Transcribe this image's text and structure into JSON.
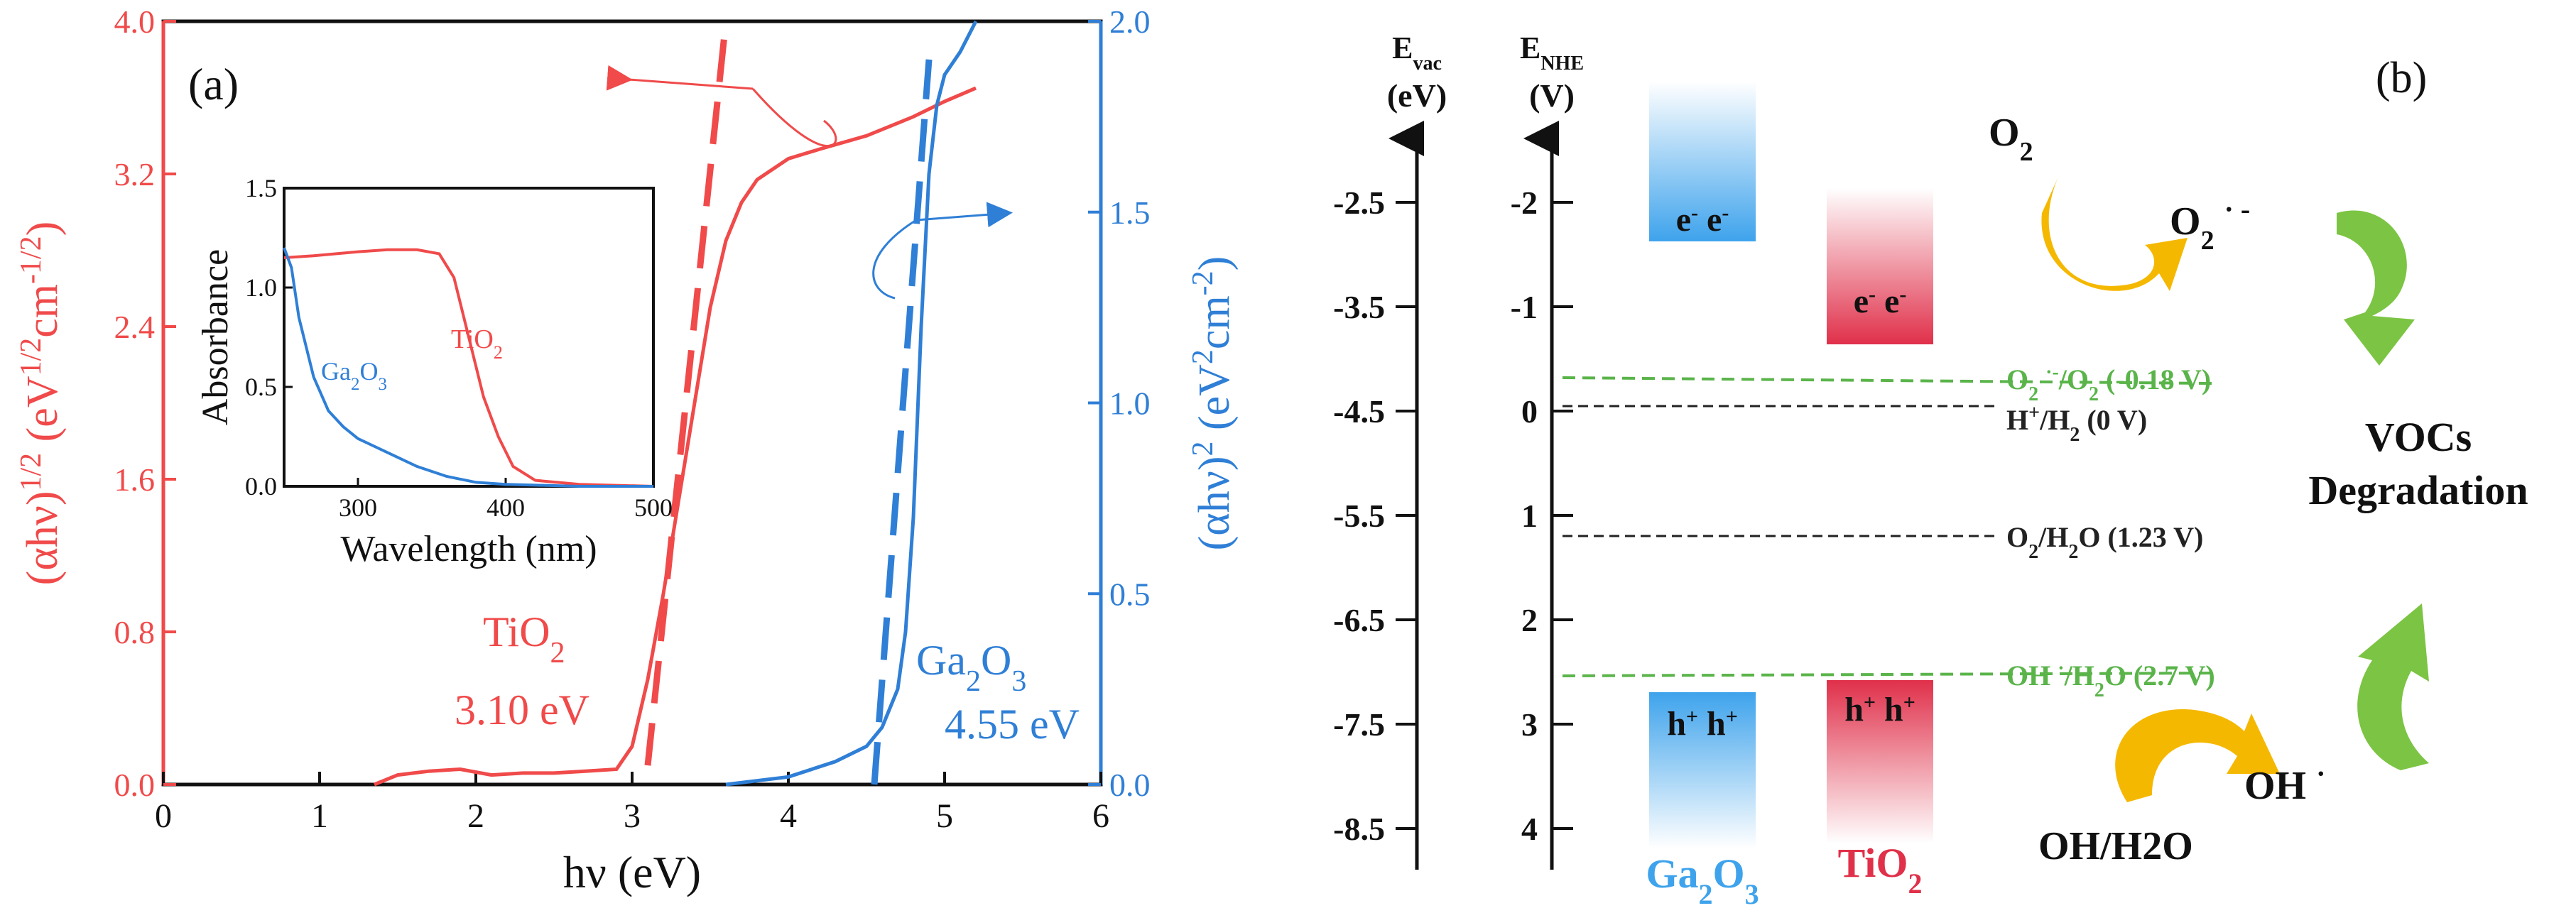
{
  "panel_a": {
    "label": "(a)",
    "ylabel_left": "(αhν)1/2 (eV1/2cm-1/2)",
    "ylabel_right": "(αhν)2 (eV2cm-2)",
    "tio2_name": "TiO2",
    "tio2_gap": "3.10 eV",
    "ga2o3_name": "Ga2O3",
    "ga2o3_gap": "4.55 eV",
    "red": "#f04a4a",
    "blue": "#2f7fd6"
  },
  "panel_b": {
    "label": "(b)",
    "evac_axis": {
      "title": "Evac",
      "unit": "(eV)",
      "ticks": [
        -2.5,
        -3.5,
        -4.5,
        -5.5,
        -6.5,
        -7.5,
        -8.5
      ]
    },
    "enhe_axis": {
      "title": "ENHE",
      "unit": "(V)",
      "ticks": [
        -2,
        -1,
        0,
        1,
        2,
        3,
        4
      ]
    },
    "ga2o3_label": "Ga2O3",
    "tio2_label": "TiO2",
    "electrons": "e⁻ e⁻",
    "holes": "h⁺ h⁺",
    "levels": [
      {
        "label": "O2·⁻/O2 (-0.18 V)",
        "value": -0.18,
        "color": "#5ab44a"
      },
      {
        "label": "H⁺/H2 (0 V)",
        "value": 0,
        "color": "#222222"
      },
      {
        "label": "O2/H2O (1.23 V)",
        "value": 1.23,
        "color": "#222222"
      },
      {
        "label": "OH·/H2O (2.7 V)",
        "value": 2.7,
        "color": "#5ab44a"
      }
    ],
    "o2": "O2",
    "o2_radical": "O2 · -",
    "voc_line1": "VOCs",
    "voc_line2": "Degradation",
    "oh_h2o": "OH/H2O",
    "oh_radical": "OH ·",
    "colors": {
      "ga2o3": "#3ea3ec",
      "tio2": "#e0304a",
      "green_arrow": "#7cc443",
      "orange_arrow": "#f5b800"
    }
  },
  "chart_data": [
    {
      "type": "line",
      "title": "",
      "xlabel": "hν (eV)",
      "ylabel": "(αhν)1/2 (eV1/2cm-1/2)",
      "ylabel_right": "(αhν)2 (eV2cm-2)",
      "xlim": [
        0,
        6
      ],
      "ylim": [
        0,
        4.0
      ],
      "ylim_right": [
        0,
        2.0
      ],
      "xticks": [
        0,
        1,
        2,
        3,
        4,
        5,
        6
      ],
      "yticks": [
        0.0,
        0.8,
        1.6,
        2.4,
        3.2,
        4.0
      ],
      "yticks_right": [
        0.0,
        0.5,
        1.0,
        1.5,
        2.0
      ],
      "series": [
        {
          "name": "TiO2",
          "axis": "left",
          "x": [
            1.35,
            1.5,
            1.7,
            1.9,
            2.1,
            2.3,
            2.5,
            2.7,
            2.9,
            3.0,
            3.1,
            3.2,
            3.3,
            3.4,
            3.5,
            3.6,
            3.7,
            3.8,
            4.0,
            4.2,
            4.5,
            4.8,
            5.0,
            5.2
          ],
          "y": [
            0.0,
            0.05,
            0.07,
            0.08,
            0.05,
            0.06,
            0.06,
            0.07,
            0.08,
            0.2,
            0.55,
            1.0,
            1.5,
            2.0,
            2.5,
            2.85,
            3.05,
            3.17,
            3.28,
            3.33,
            3.4,
            3.5,
            3.58,
            3.65
          ]
        },
        {
          "name": "TiO2 fit",
          "axis": "left",
          "x": [
            3.1,
            3.6
          ],
          "y": [
            0.1,
            4.0
          ]
        },
        {
          "name": "Ga2O3",
          "axis": "right",
          "x": [
            3.6,
            4.0,
            4.3,
            4.5,
            4.6,
            4.7,
            4.75,
            4.8,
            4.85,
            4.9,
            4.95,
            5.0,
            5.1,
            5.2
          ],
          "y": [
            0.0,
            0.02,
            0.06,
            0.1,
            0.15,
            0.25,
            0.4,
            0.7,
            1.2,
            1.6,
            1.78,
            1.86,
            1.92,
            2.0
          ]
        },
        {
          "name": "Ga2O3 fit",
          "axis": "right",
          "x": [
            4.55,
            4.9
          ],
          "y": [
            0.0,
            1.9
          ]
        }
      ],
      "annotations": [
        "TiO2 3.10 eV",
        "Ga2O3 4.55 eV"
      ]
    },
    {
      "type": "line",
      "title": "",
      "inset": true,
      "xlabel": "Wavelength (nm)",
      "ylabel": "Absorbance",
      "xlim": [
        250,
        500
      ],
      "ylim": [
        0.0,
        1.5
      ],
      "xticks": [
        300,
        400,
        500
      ],
      "yticks": [
        0.0,
        0.5,
        1.0,
        1.5
      ],
      "series": [
        {
          "name": "TiO2",
          "x": [
            250,
            270,
            300,
            320,
            340,
            355,
            365,
            375,
            385,
            395,
            405,
            420,
            450,
            500
          ],
          "y": [
            1.15,
            1.16,
            1.18,
            1.19,
            1.19,
            1.17,
            1.05,
            0.75,
            0.45,
            0.25,
            0.1,
            0.03,
            0.01,
            0.0
          ]
        },
        {
          "name": "Ga2O3",
          "x": [
            250,
            255,
            260,
            270,
            280,
            290,
            300,
            320,
            340,
            360,
            380,
            400,
            450,
            500
          ],
          "y": [
            1.2,
            1.1,
            0.85,
            0.55,
            0.38,
            0.3,
            0.24,
            0.17,
            0.1,
            0.05,
            0.02,
            0.01,
            0.0,
            0.0
          ]
        }
      ],
      "annotations": [
        "TiO2",
        "Ga2O3"
      ]
    }
  ]
}
